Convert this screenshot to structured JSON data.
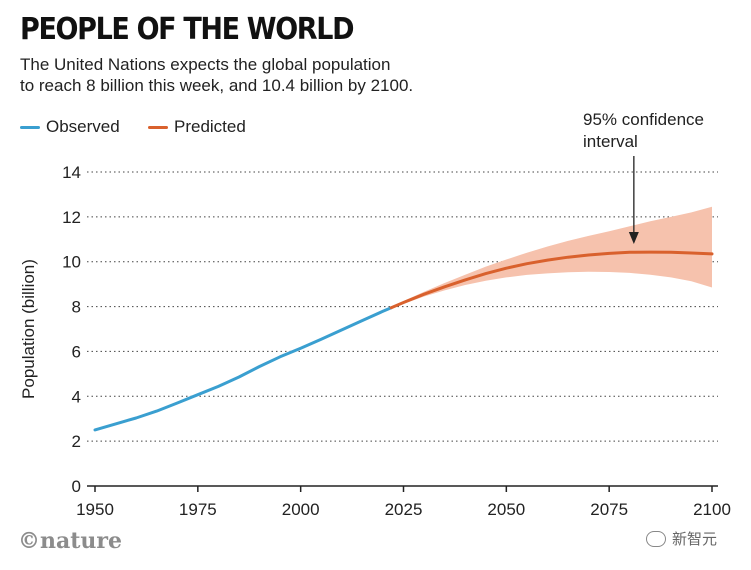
{
  "header": {
    "title": "PEOPLE OF THE WORLD",
    "subtitle_line1": "The United Nations expects the global population",
    "subtitle_line2": "to reach 8 billion this week, and 10.4 billion by 2100."
  },
  "annotation": {
    "line1": "95% confidence",
    "line2": "interval"
  },
  "credit": "©nature",
  "watermark": "新智元",
  "colors": {
    "observed": "#3a9fd0",
    "predicted": "#d9612d",
    "interval": "#f6c2ad",
    "grid": "#444444",
    "axis": "#222222"
  },
  "chart_data": {
    "type": "line",
    "title": "PEOPLE OF THE WORLD",
    "xlabel": "",
    "ylabel": "Population (billion)",
    "xlim": [
      1950,
      2100
    ],
    "ylim": [
      0,
      14
    ],
    "xticks": [
      1950,
      1975,
      2000,
      2025,
      2050,
      2075,
      2100
    ],
    "yticks": [
      0,
      2,
      4,
      6,
      8,
      10,
      12,
      14
    ],
    "grid": "horizontal dotted",
    "legend": "top-left",
    "series": [
      {
        "name": "Observed",
        "x": [
          1950,
          1955,
          1960,
          1965,
          1970,
          1975,
          1980,
          1985,
          1990,
          1995,
          2000,
          2005,
          2010,
          2015,
          2020,
          2022
        ],
        "values": [
          2.5,
          2.77,
          3.03,
          3.34,
          3.7,
          4.07,
          4.44,
          4.86,
          5.33,
          5.76,
          6.14,
          6.54,
          6.96,
          7.38,
          7.79,
          7.95
        ]
      },
      {
        "name": "Predicted",
        "x": [
          2022,
          2025,
          2030,
          2035,
          2040,
          2045,
          2050,
          2055,
          2060,
          2065,
          2070,
          2075,
          2080,
          2085,
          2090,
          2095,
          2100
        ],
        "values": [
          7.95,
          8.18,
          8.55,
          8.88,
          9.19,
          9.47,
          9.71,
          9.91,
          10.07,
          10.2,
          10.3,
          10.37,
          10.42,
          10.43,
          10.42,
          10.39,
          10.35
        ],
        "lower": [
          7.95,
          8.12,
          8.45,
          8.72,
          8.96,
          9.15,
          9.3,
          9.41,
          9.48,
          9.53,
          9.55,
          9.54,
          9.5,
          9.42,
          9.3,
          9.13,
          8.85
        ],
        "upper": [
          7.95,
          8.25,
          8.66,
          9.05,
          9.42,
          9.78,
          10.1,
          10.4,
          10.68,
          10.93,
          11.15,
          11.36,
          11.58,
          11.8,
          12.0,
          12.2,
          12.45
        ]
      }
    ]
  }
}
